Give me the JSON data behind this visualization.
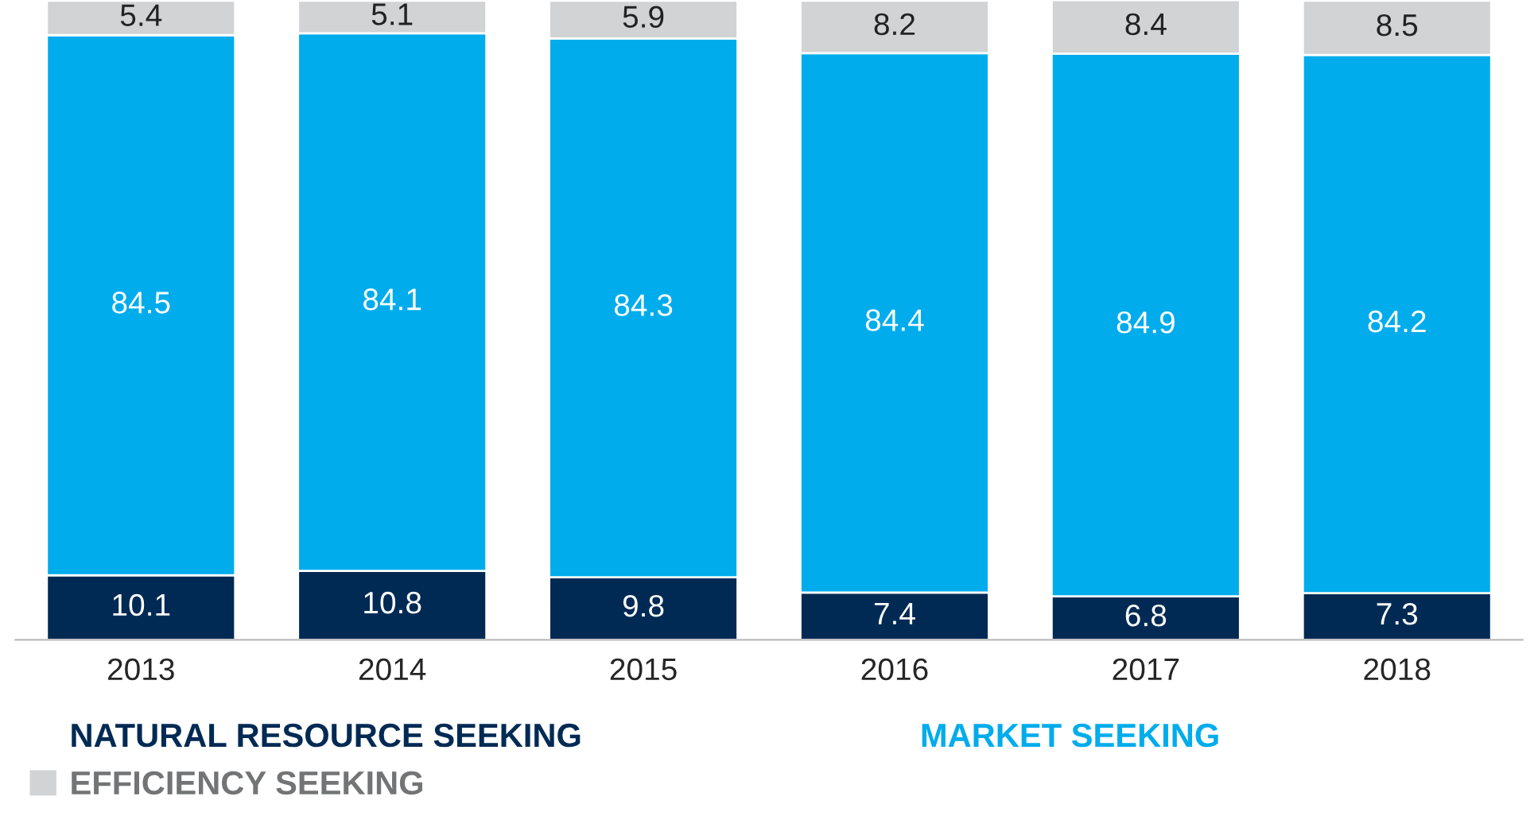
{
  "chart_data": {
    "type": "bar",
    "stacked": true,
    "data_labels": true,
    "legend": "bottom",
    "categories": [
      "2013",
      "2014",
      "2015",
      "2016",
      "2017",
      "2018"
    ],
    "series": [
      {
        "name": "NATURAL RESOURCE SEEKING",
        "color": "#002a54",
        "values": [
          10.1,
          10.8,
          9.8,
          7.4,
          6.8,
          7.3
        ]
      },
      {
        "name": "MARKET SEEKING",
        "color": "#00acec",
        "values": [
          84.5,
          84.1,
          84.3,
          84.4,
          84.9,
          84.2
        ]
      },
      {
        "name": "EFFICIENCY SEEKING",
        "color": "#d1d3d4",
        "values": [
          5.4,
          5.1,
          5.9,
          8.2,
          8.4,
          8.5
        ]
      }
    ]
  }
}
